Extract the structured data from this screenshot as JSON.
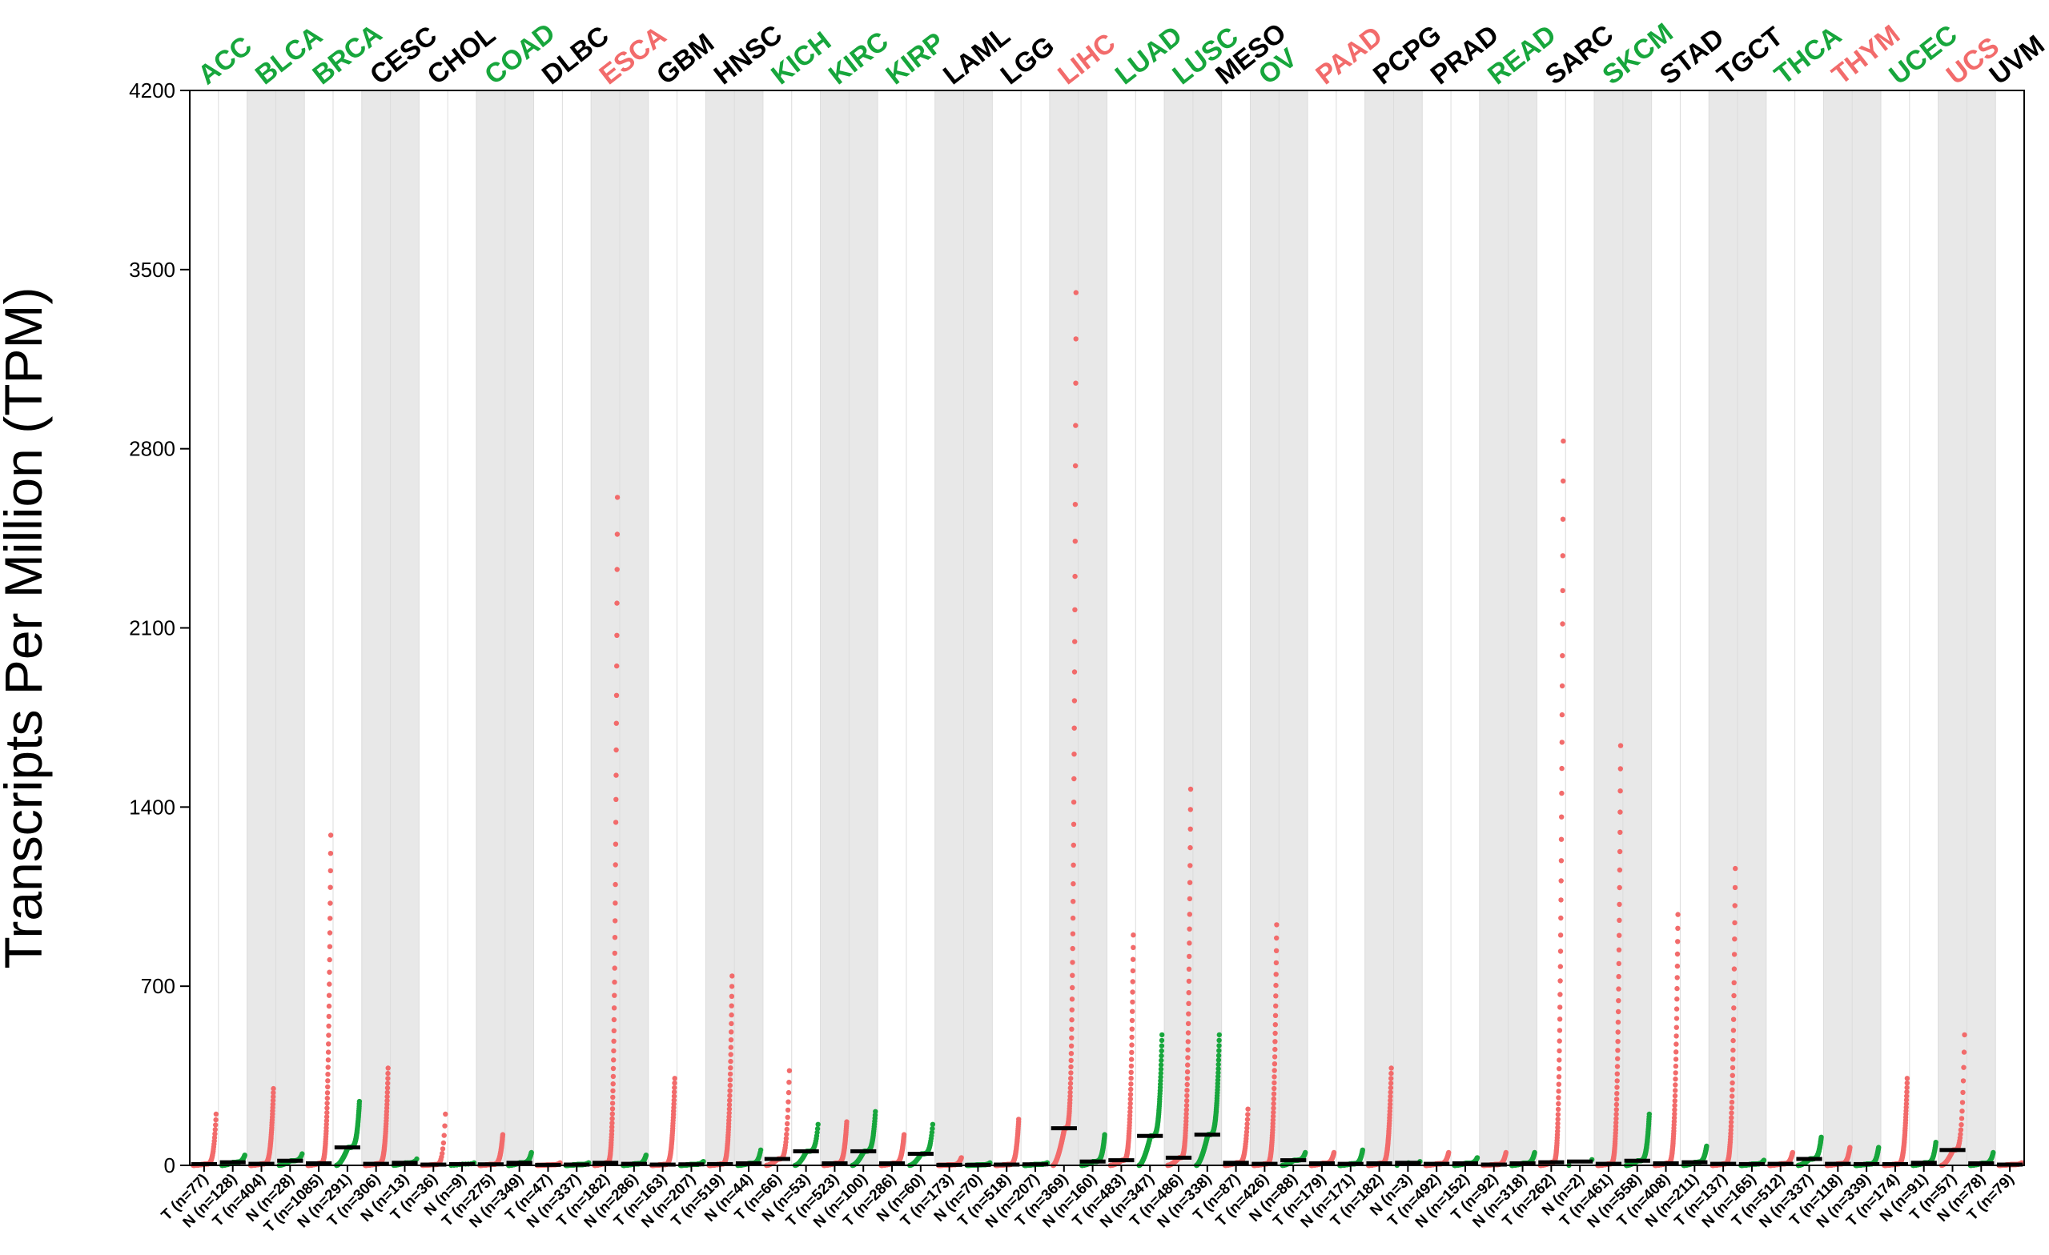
{
  "chart_data": {
    "type": "scatter",
    "title": "",
    "ylabel": "Transcripts Per Million (TPM)",
    "xlabel": "",
    "ylim": [
      0,
      4200
    ],
    "yticks": [
      0,
      700,
      1400,
      2100,
      2800,
      3500,
      4200
    ],
    "grid": false,
    "colors": {
      "tumor": "#f26b6b",
      "normal": "#17a63c",
      "up": "#17a63c",
      "down": "#f26b6b",
      "neutral": "#000000",
      "band": "#e8e8e8"
    },
    "cancer_types": [
      {
        "name": "ACC",
        "color": "#17a63c",
        "tumor_n": 77,
        "normal_n": 128,
        "tumor_median": 5,
        "normal_median": 12,
        "tumor_max": 200,
        "normal_max": 40
      },
      {
        "name": "BLCA",
        "color": "#17a63c",
        "tumor_n": 404,
        "normal_n": 28,
        "tumor_median": 6,
        "normal_median": 18,
        "tumor_max": 300,
        "normal_max": 45
      },
      {
        "name": "BRCA",
        "color": "#17a63c",
        "tumor_n": 1085,
        "normal_n": 291,
        "tumor_median": 8,
        "normal_median": 70,
        "tumor_max": 1290,
        "normal_max": 250
      },
      {
        "name": "CESC",
        "color": "#000000",
        "tumor_n": 306,
        "normal_n": 13,
        "tumor_median": 6,
        "normal_median": 10,
        "tumor_max": 380,
        "normal_max": 25
      },
      {
        "name": "CHOL",
        "color": "#000000",
        "tumor_n": 36,
        "normal_n": 9,
        "tumor_median": 3,
        "normal_median": 5,
        "tumor_max": 200,
        "normal_max": 10
      },
      {
        "name": "COAD",
        "color": "#17a63c",
        "tumor_n": 275,
        "normal_n": 349,
        "tumor_median": 4,
        "normal_median": 10,
        "tumor_max": 120,
        "normal_max": 50
      },
      {
        "name": "DLBC",
        "color": "#000000",
        "tumor_n": 47,
        "normal_n": 337,
        "tumor_median": 2,
        "normal_median": 3,
        "tumor_max": 10,
        "normal_max": 10
      },
      {
        "name": "ESCA",
        "color": "#f26b6b",
        "tumor_n": 182,
        "normal_n": 286,
        "tumor_median": 10,
        "normal_median": 6,
        "tumor_max": 2610,
        "normal_max": 40
      },
      {
        "name": "GBM",
        "color": "#000000",
        "tumor_n": 163,
        "normal_n": 207,
        "tumor_median": 3,
        "normal_median": 4,
        "tumor_max": 340,
        "normal_max": 15
      },
      {
        "name": "HNSC",
        "color": "#000000",
        "tumor_n": 519,
        "normal_n": 44,
        "tumor_median": 5,
        "normal_median": 8,
        "tumor_max": 740,
        "normal_max": 60
      },
      {
        "name": "KICH",
        "color": "#17a63c",
        "tumor_n": 66,
        "normal_n": 53,
        "tumor_median": 25,
        "normal_median": 55,
        "tumor_max": 370,
        "normal_max": 160
      },
      {
        "name": "KIRC",
        "color": "#17a63c",
        "tumor_n": 523,
        "normal_n": 100,
        "tumor_median": 8,
        "normal_median": 55,
        "tumor_max": 170,
        "normal_max": 210
      },
      {
        "name": "KIRP",
        "color": "#17a63c",
        "tumor_n": 286,
        "normal_n": 60,
        "tumor_median": 8,
        "normal_median": 45,
        "tumor_max": 120,
        "normal_max": 160
      },
      {
        "name": "LAML",
        "color": "#000000",
        "tumor_n": 173,
        "normal_n": 70,
        "tumor_median": 2,
        "normal_median": 2,
        "tumor_max": 30,
        "normal_max": 10
      },
      {
        "name": "LGG",
        "color": "#000000",
        "tumor_n": 518,
        "normal_n": 207,
        "tumor_median": 3,
        "normal_median": 4,
        "tumor_max": 180,
        "normal_max": 10
      },
      {
        "name": "LIHC",
        "color": "#f26b6b",
        "tumor_n": 369,
        "normal_n": 160,
        "tumor_median": 145,
        "normal_median": 15,
        "tumor_max": 3410,
        "normal_max": 120
      },
      {
        "name": "LUAD",
        "color": "#17a63c",
        "tumor_n": 483,
        "normal_n": 347,
        "tumor_median": 20,
        "normal_median": 115,
        "tumor_max": 900,
        "normal_max": 510
      },
      {
        "name": "LUSC",
        "color": "#17a63c",
        "tumor_n": 486,
        "normal_n": 338,
        "tumor_median": 30,
        "normal_median": 120,
        "tumor_max": 1470,
        "normal_max": 510
      },
      {
        "name": "MESO",
        "color": "#000000",
        "tumor_n": 87,
        "normal_n": 0,
        "tumor_median": 10,
        "normal_median": 0,
        "tumor_max": 220,
        "normal_max": 0
      },
      {
        "name": "OV",
        "color": "#17a63c",
        "tumor_n": 426,
        "normal_n": 88,
        "tumor_median": 6,
        "normal_median": 20,
        "tumor_max": 940,
        "normal_max": 50
      },
      {
        "name": "PAAD",
        "color": "#f26b6b",
        "tumor_n": 179,
        "normal_n": 171,
        "tumor_median": 8,
        "normal_median": 6,
        "tumor_max": 50,
        "normal_max": 60
      },
      {
        "name": "PCPG",
        "color": "#000000",
        "tumor_n": 182,
        "normal_n": 3,
        "tumor_median": 8,
        "normal_median": 10,
        "tumor_max": 380,
        "normal_max": 15
      },
      {
        "name": "PRAD",
        "color": "#000000",
        "tumor_n": 492,
        "normal_n": 152,
        "tumor_median": 6,
        "normal_median": 8,
        "tumor_max": 50,
        "normal_max": 30
      },
      {
        "name": "READ",
        "color": "#17a63c",
        "tumor_n": 92,
        "normal_n": 318,
        "tumor_median": 3,
        "normal_median": 8,
        "tumor_max": 50,
        "normal_max": 50
      },
      {
        "name": "SARC",
        "color": "#000000",
        "tumor_n": 262,
        "normal_n": 2,
        "tumor_median": 12,
        "normal_median": 15,
        "tumor_max": 2830,
        "normal_max": 20
      },
      {
        "name": "SKCM",
        "color": "#17a63c",
        "tumor_n": 461,
        "normal_n": 558,
        "tumor_median": 6,
        "normal_median": 18,
        "tumor_max": 1640,
        "normal_max": 200
      },
      {
        "name": "STAD",
        "color": "#000000",
        "tumor_n": 408,
        "normal_n": 211,
        "tumor_median": 8,
        "normal_median": 12,
        "tumor_max": 980,
        "normal_max": 75
      },
      {
        "name": "TGCT",
        "color": "#000000",
        "tumor_n": 137,
        "normal_n": 165,
        "tumor_median": 6,
        "normal_median": 5,
        "tumor_max": 1160,
        "normal_max": 20
      },
      {
        "name": "THCA",
        "color": "#17a63c",
        "tumor_n": 512,
        "normal_n": 337,
        "tumor_median": 6,
        "normal_median": 25,
        "tumor_max": 50,
        "normal_max": 110
      },
      {
        "name": "THYM",
        "color": "#f26b6b",
        "tumor_n": 118,
        "normal_n": 339,
        "tumor_median": 6,
        "normal_median": 5,
        "tumor_max": 70,
        "normal_max": 70
      },
      {
        "name": "UCEC",
        "color": "#17a63c",
        "tumor_n": 174,
        "normal_n": 91,
        "tumor_median": 5,
        "normal_median": 10,
        "tumor_max": 340,
        "normal_max": 90
      },
      {
        "name": "UCS",
        "color": "#f26b6b",
        "tumor_n": 57,
        "normal_n": 78,
        "tumor_median": 60,
        "normal_median": 8,
        "tumor_max": 510,
        "normal_max": 50
      },
      {
        "name": "UVM",
        "color": "#000000",
        "tumor_n": 79,
        "normal_n": 0,
        "tumor_median": 3,
        "normal_median": 0,
        "tumor_max": 10,
        "normal_max": 0
      }
    ],
    "x_tick_labels": [
      "T (n=77)",
      "N (n=128)",
      "T (n=404)",
      "N (n=28)",
      "T (n=1085)",
      "N (n=291)",
      "T (n=306)",
      "N (n=13)",
      "T (n=36)",
      "N (n=9)",
      "T (n=275)",
      "N (n=349)",
      "T (n=47)",
      "N (n=337)",
      "T (n=182)",
      "N (n=286)",
      "T (n=163)",
      "N (n=207)",
      "T (n=519)",
      "N (n=44)",
      "T (n=66)",
      "N (n=53)",
      "T (n=523)",
      "N (n=100)",
      "T (n=286)",
      "N (n=60)",
      "T (n=173)",
      "N (n=70)",
      "T (n=518)",
      "N (n=207)",
      "T (n=369)",
      "N (n=160)",
      "T (n=483)",
      "N (n=347)",
      "T (n=486)",
      "N (n=338)",
      "T (n=87)",
      "T (n=426)",
      "N (n=88)",
      "T (n=179)",
      "N (n=171)",
      "T (n=182)",
      "N (n=3)",
      "T (n=492)",
      "N (n=152)",
      "T (n=92)",
      "N (n=318)",
      "T (n=262)",
      "N (n=2)",
      "T (n=461)",
      "N (n=558)",
      "T (n=408)",
      "N (n=211)",
      "T (n=137)",
      "N (n=165)",
      "T (n=512)",
      "N (n=337)",
      "T (n=118)",
      "N (n=339)",
      "T (n=174)",
      "N (n=91)",
      "T (n=57)",
      "N (n=78)",
      "T (n=79)"
    ]
  }
}
